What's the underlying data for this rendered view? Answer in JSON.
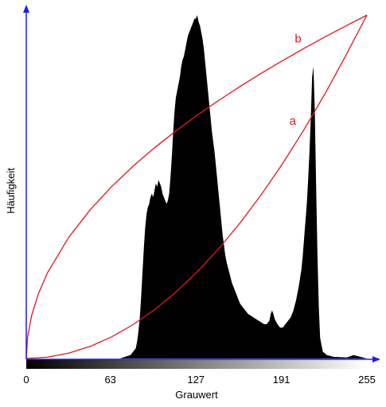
{
  "chart_data": {
    "type": "area",
    "xlabel": "Grauwert",
    "ylabel": "Häufigkeit",
    "xlim": [
      0,
      255
    ],
    "ylim": [
      0,
      1
    ],
    "x_ticks": [
      0,
      63,
      127,
      191,
      255
    ],
    "grid": false,
    "colors": {
      "histogram": "#000000",
      "curves": "#e8141b",
      "axes": "#1a1aff"
    },
    "series": [
      {
        "type": "area",
        "points": [
          [
            0,
            0.0
          ],
          [
            70,
            0.0
          ],
          [
            74,
            0.005
          ],
          [
            78,
            0.01
          ],
          [
            80,
            0.02
          ],
          [
            82,
            0.03
          ],
          [
            83,
            0.05
          ],
          [
            84,
            0.08
          ],
          [
            85,
            0.12
          ],
          [
            86,
            0.18
          ],
          [
            87,
            0.25
          ],
          [
            88,
            0.32
          ],
          [
            89,
            0.38
          ],
          [
            90,
            0.42
          ],
          [
            91,
            0.44
          ],
          [
            92,
            0.45
          ],
          [
            93,
            0.47
          ],
          [
            94,
            0.48
          ],
          [
            95,
            0.47
          ],
          [
            96,
            0.49
          ],
          [
            97,
            0.51
          ],
          [
            98,
            0.5
          ],
          [
            99,
            0.52
          ],
          [
            100,
            0.51
          ],
          [
            101,
            0.5
          ],
          [
            102,
            0.48
          ],
          [
            103,
            0.47
          ],
          [
            104,
            0.46
          ],
          [
            105,
            0.45
          ],
          [
            106,
            0.46
          ],
          [
            107,
            0.48
          ],
          [
            108,
            0.53
          ],
          [
            109,
            0.59
          ],
          [
            110,
            0.66
          ],
          [
            111,
            0.72
          ],
          [
            112,
            0.76
          ],
          [
            113,
            0.78
          ],
          [
            114,
            0.8
          ],
          [
            115,
            0.82
          ],
          [
            116,
            0.85
          ],
          [
            117,
            0.87
          ],
          [
            118,
            0.88
          ],
          [
            119,
            0.9
          ],
          [
            120,
            0.92
          ],
          [
            121,
            0.94
          ],
          [
            122,
            0.95
          ],
          [
            123,
            0.96
          ],
          [
            124,
            0.97
          ],
          [
            125,
            0.98
          ],
          [
            126,
            0.99
          ],
          [
            127,
            0.99
          ],
          [
            128,
            1.0
          ],
          [
            129,
            0.98
          ],
          [
            130,
            0.97
          ],
          [
            131,
            0.95
          ],
          [
            132,
            0.93
          ],
          [
            133,
            0.9
          ],
          [
            134,
            0.86
          ],
          [
            135,
            0.82
          ],
          [
            136,
            0.78
          ],
          [
            137,
            0.74
          ],
          [
            138,
            0.7
          ],
          [
            139,
            0.66
          ],
          [
            140,
            0.63
          ],
          [
            141,
            0.6
          ],
          [
            142,
            0.56
          ],
          [
            143,
            0.52
          ],
          [
            144,
            0.48
          ],
          [
            145,
            0.44
          ],
          [
            146,
            0.4
          ],
          [
            147,
            0.36
          ],
          [
            148,
            0.33
          ],
          [
            149,
            0.3
          ],
          [
            150,
            0.28
          ],
          [
            152,
            0.25
          ],
          [
            154,
            0.22
          ],
          [
            156,
            0.2
          ],
          [
            158,
            0.18
          ],
          [
            160,
            0.16
          ],
          [
            162,
            0.15
          ],
          [
            164,
            0.14
          ],
          [
            166,
            0.13
          ],
          [
            168,
            0.125
          ],
          [
            170,
            0.12
          ],
          [
            172,
            0.115
          ],
          [
            174,
            0.11
          ],
          [
            176,
            0.105
          ],
          [
            178,
            0.1
          ],
          [
            180,
            0.1
          ],
          [
            182,
            0.11
          ],
          [
            183,
            0.13
          ],
          [
            184,
            0.14
          ],
          [
            185,
            0.13
          ],
          [
            186,
            0.115
          ],
          [
            188,
            0.1
          ],
          [
            190,
            0.09
          ],
          [
            192,
            0.09
          ],
          [
            194,
            0.1
          ],
          [
            196,
            0.11
          ],
          [
            198,
            0.12
          ],
          [
            200,
            0.14
          ],
          [
            202,
            0.17
          ],
          [
            204,
            0.21
          ],
          [
            206,
            0.26
          ],
          [
            207,
            0.3
          ],
          [
            208,
            0.35
          ],
          [
            209,
            0.4
          ],
          [
            210,
            0.45
          ],
          [
            211,
            0.52
          ],
          [
            212,
            0.6
          ],
          [
            213,
            0.7
          ],
          [
            214,
            0.82
          ],
          [
            215,
            0.85
          ],
          [
            216,
            0.72
          ],
          [
            217,
            0.5
          ],
          [
            218,
            0.3
          ],
          [
            219,
            0.15
          ],
          [
            220,
            0.06
          ],
          [
            222,
            0.02
          ],
          [
            225,
            0.01
          ],
          [
            230,
            0.005
          ],
          [
            240,
            0.003
          ],
          [
            245,
            0.01
          ],
          [
            250,
            0.005
          ],
          [
            255,
            0.0
          ]
        ]
      },
      {
        "name": "a",
        "type": "line",
        "x": [
          0,
          16,
          32,
          48,
          64,
          80,
          96,
          112,
          128,
          144,
          160,
          176,
          192,
          208,
          224,
          240,
          255
        ],
        "y": [
          0.0,
          0.00395,
          0.01578,
          0.03551,
          0.06313,
          0.09865,
          0.14205,
          0.19335,
          0.25254,
          0.31962,
          0.3946,
          0.47746,
          0.56822,
          0.66688,
          0.77342,
          0.88786,
          1.0
        ]
      },
      {
        "name": "b",
        "type": "line",
        "x": [
          0,
          1,
          4,
          9,
          16,
          32,
          48,
          64,
          80,
          96,
          112,
          128,
          144,
          160,
          176,
          192,
          208,
          224,
          240,
          255
        ],
        "y": [
          0.0,
          0.06262,
          0.12524,
          0.18787,
          0.25049,
          0.35425,
          0.43386,
          0.50098,
          0.56012,
          0.61358,
          0.66274,
          0.70851,
          0.75148,
          0.79212,
          0.8308,
          0.86771,
          0.90318,
          0.93726,
          0.97014,
          1.0
        ]
      }
    ],
    "curve_labels": [
      {
        "text": "a",
        "x": 199.5,
        "y": 0.68
      },
      {
        "text": "b",
        "x": 203.5,
        "y": 0.92
      }
    ]
  }
}
